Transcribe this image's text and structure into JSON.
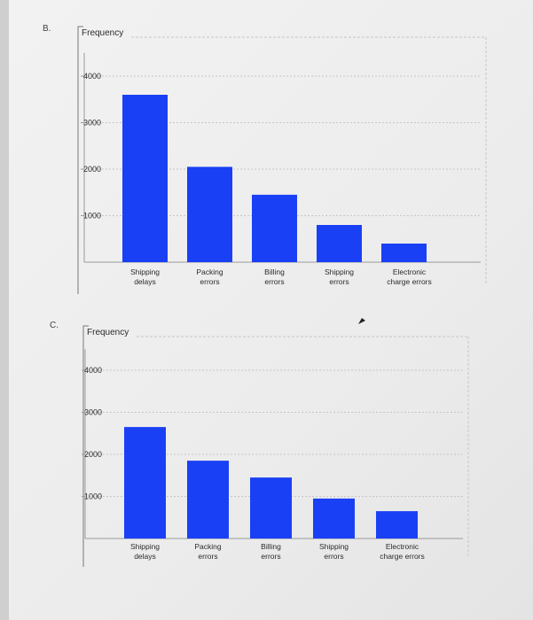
{
  "options": [
    {
      "label": "B."
    },
    {
      "label": "C."
    }
  ],
  "colors": {
    "bar": "#1a40f5",
    "grid": "#c6c6c6",
    "axis": "#9a9a9a",
    "frame": "#777777",
    "text": "#2a2a2a"
  },
  "chart_data": [
    {
      "type": "bar",
      "ylabel": "Frequency",
      "categories": [
        [
          "Shipping",
          "delays"
        ],
        [
          "Packing",
          "errors"
        ],
        [
          "Billing",
          "errors"
        ],
        [
          "Shipping",
          "errors"
        ],
        [
          "Electronic",
          "charge errors"
        ]
      ],
      "values": [
        3600,
        2050,
        1450,
        800,
        400
      ],
      "yticks": [
        1000,
        2000,
        3000,
        4000
      ],
      "ylim": [
        0,
        4500
      ],
      "grid": true,
      "legend": "none"
    },
    {
      "type": "bar",
      "ylabel": "Frequency",
      "categories": [
        [
          "Shipping",
          "delays"
        ],
        [
          "Packing",
          "errors"
        ],
        [
          "Billing",
          "errors"
        ],
        [
          "Shipping",
          "errors"
        ],
        [
          "Electronic",
          "charge errors"
        ]
      ],
      "values": [
        2650,
        1850,
        1450,
        950,
        650
      ],
      "yticks": [
        1000,
        2000,
        3000,
        4000
      ],
      "ylim": [
        0,
        4500
      ],
      "grid": true,
      "legend": "none"
    }
  ]
}
